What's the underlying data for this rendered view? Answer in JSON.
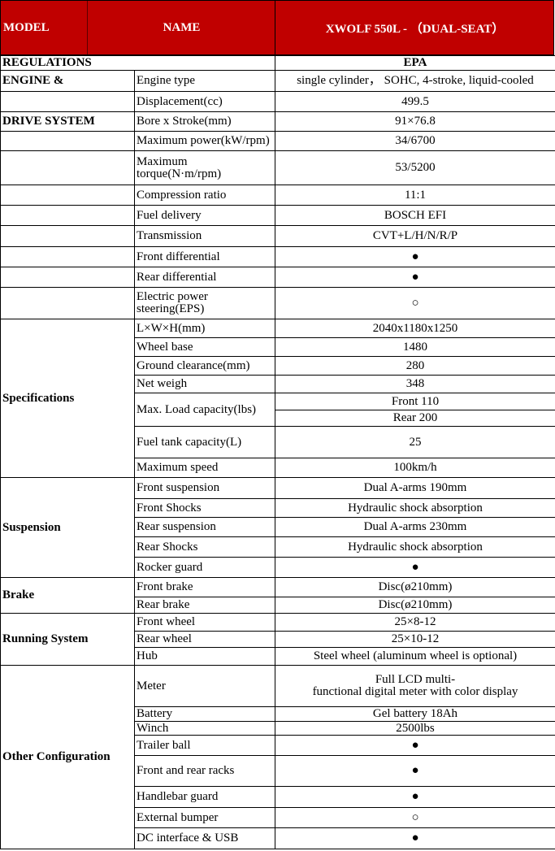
{
  "header": {
    "model": "MODEL",
    "name": "NAME",
    "value": "XWOLF 550L - （DUAL-SEAT）"
  },
  "colors": {
    "header_bg": "#c00000",
    "header_text": "#ffffff"
  },
  "regulations": {
    "label": "REGULATIONS",
    "value": "EPA"
  },
  "sections": [
    {
      "group": "",
      "rows": [
        {
          "side": "ENGINE &",
          "label": "Engine type",
          "value": "single cylinder，  SOHC, 4-stroke, liquid-cooled"
        },
        {
          "side": "",
          "label": "Displacement(cc)",
          "value": "499.5"
        },
        {
          "side": "DRIVE SYSTEM",
          "label": "Bore x Stroke(mm)",
          "value": "91×76.8"
        },
        {
          "side": "",
          "label": "Maximum power(kW/rpm)",
          "value": "34/6700"
        },
        {
          "side": "",
          "label": "Maximum torque(N·m/rpm)",
          "value": "53/5200"
        },
        {
          "side": "",
          "label": "Compression ratio",
          "value": "11:1"
        },
        {
          "side": "",
          "label": "Fuel delivery",
          "value": "BOSCH EFI"
        },
        {
          "side": "",
          "label": "Transmission",
          "value": "CVT+L/H/N/R/P"
        },
        {
          "side": "",
          "label": "Front differential",
          "value": "●"
        },
        {
          "side": "",
          "label": "Rear  differential",
          "value": "●"
        },
        {
          "side": "",
          "label": "Electric power steering(EPS)",
          "value": "○"
        }
      ]
    },
    {
      "group": "Specifications",
      "rows": [
        {
          "label": "L×W×H(mm)",
          "value": "2040x1180x1250"
        },
        {
          "label": "Wheel base",
          "value": "1480"
        },
        {
          "label": "Ground clearance(mm)",
          "value": "280"
        },
        {
          "label": "Net weigh",
          "value": "348"
        },
        {
          "label": "Max. Load capacity(lbs)",
          "values": [
            "Front 110",
            "Rear 200"
          ]
        },
        {
          "label": "Fuel tank capacity(L)",
          "value": "25"
        },
        {
          "label": "Maximum speed",
          "value": "100km/h"
        }
      ]
    },
    {
      "group": "Suspension",
      "rows": [
        {
          "label": "Front suspension",
          "value": "Dual A-arms 190mm"
        },
        {
          "label": "Front Shocks",
          "value": "Hydraulic shock absorption"
        },
        {
          "label": "Rear suspension",
          "value": "Dual A-arms 230mm"
        },
        {
          "label": "Rear Shocks",
          "value": "Hydraulic shock absorption"
        },
        {
          "label": "Rocker guard",
          "value": "●"
        }
      ]
    },
    {
      "group": "Brake",
      "rows": [
        {
          "label": "Front brake",
          "value": "Disc(ø210mm)"
        },
        {
          "label": "Rear brake",
          "value": "Disc(ø210mm)"
        }
      ]
    },
    {
      "group": "Running System",
      "rows": [
        {
          "label": "Front wheel",
          "value": "25×8-12"
        },
        {
          "label": "Rear wheel",
          "value": "25×10-12"
        },
        {
          "label": "Hub",
          "value": "Steel wheel (aluminum wheel is optional)"
        }
      ]
    },
    {
      "group": "Other Configuration",
      "rows": [
        {
          "label": "Meter",
          "value": "Full LCD multi-\nfunctional digital meter with color display"
        },
        {
          "label": "Battery",
          "value": "Gel battery 18Ah"
        },
        {
          "label": "Winch",
          "value": "2500lbs"
        },
        {
          "label": "Trailer ball",
          "value": "●"
        },
        {
          "label": "Front and rear racks",
          "value": "●"
        },
        {
          "label": "Handlebar guard",
          "value": "●"
        },
        {
          "label": "External bumper",
          "value": "○"
        },
        {
          "label": "DC interface & USB",
          "value": "●"
        }
      ]
    }
  ]
}
